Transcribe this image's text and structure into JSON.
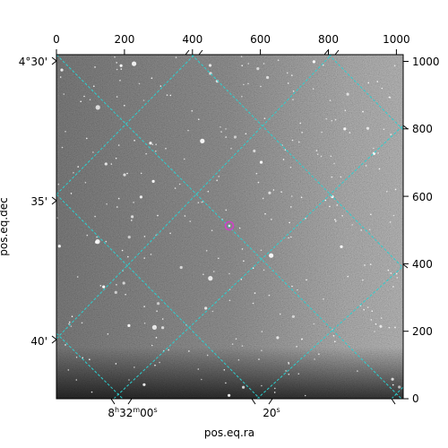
{
  "figure": {
    "xlabel": "pos.eq.ra",
    "ylabel": "pos.eq.dec",
    "top_ticks": [
      "0",
      "200",
      "400",
      "600",
      "800",
      "1000"
    ],
    "right_ticks": [
      "0",
      "200",
      "400",
      "600",
      "800",
      "1000"
    ],
    "dec_ticks": [
      "4°30'",
      "35'",
      "40'"
    ],
    "ra_ticks": [
      {
        "h": "8",
        "hu": "h",
        "m": "32",
        "mu": "m",
        "s": "00",
        "su": "s"
      },
      {
        "s": "20",
        "su": "s"
      }
    ],
    "pixel_range": [
      0,
      1020
    ],
    "colors": {
      "grid": "#2bd0d0",
      "marker": "#d040c8",
      "image_bg": "#6e6e6e"
    },
    "marker_icon": "circle-marker"
  }
}
